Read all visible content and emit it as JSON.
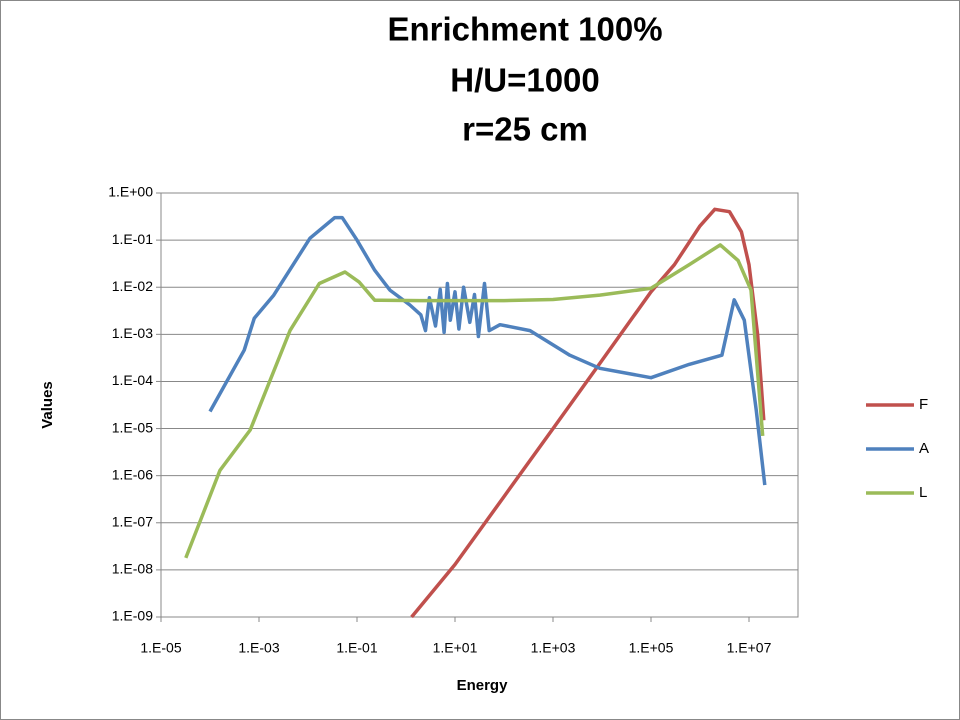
{
  "chart_data": {
    "type": "line",
    "title": [
      "Enrichment 100%",
      "H/U=1000",
      "r=25 cm"
    ],
    "x_label": "Energy",
    "y_label": "Values",
    "xscale": "log",
    "yscale": "log",
    "xlim": [
      1e-05,
      100000000.0
    ],
    "ylim": [
      1e-09,
      1
    ],
    "xticks": [
      {
        "value": 1e-05,
        "label": "1.E-05"
      },
      {
        "value": 0.001,
        "label": "1.E-03"
      },
      {
        "value": 0.1,
        "label": "1.E-01"
      },
      {
        "value": 10,
        "label": "1.E+01"
      },
      {
        "value": 1000,
        "label": "1.E+03"
      },
      {
        "value": 100000,
        "label": "1.E+05"
      },
      {
        "value": 10000000,
        "label": "1.E+07"
      }
    ],
    "yticks": [
      {
        "value": 1,
        "label": "1.E+00"
      },
      {
        "value": 0.1,
        "label": "1.E-01"
      },
      {
        "value": 0.01,
        "label": "1.E-02"
      },
      {
        "value": 0.001,
        "label": "1.E-03"
      },
      {
        "value": 0.0001,
        "label": "1.E-04"
      },
      {
        "value": 1e-05,
        "label": "1.E-05"
      },
      {
        "value": 1e-06,
        "label": "1.E-06"
      },
      {
        "value": 1e-07,
        "label": "1.E-07"
      },
      {
        "value": 1e-08,
        "label": "1.E-08"
      },
      {
        "value": 1e-09,
        "label": "1.E-09"
      }
    ],
    "grid": true,
    "legend": "right",
    "series": [
      {
        "name": "F",
        "color": "#c0504d",
        "x": [
          1.3,
          10,
          100,
          1000,
          10000,
          100000,
          300000,
          1000000,
          2000000,
          4000000,
          7000000,
          10000000,
          15000000,
          20000000
        ],
        "values": [
          1e-09,
          1.3e-08,
          3.6e-07,
          1e-05,
          0.00028,
          0.008,
          0.03,
          0.2,
          0.45,
          0.4,
          0.15,
          0.03,
          0.001,
          1.5e-05
        ]
      },
      {
        "name": "A",
        "color": "#4f81bd",
        "x": [
          0.0001,
          0.0005,
          0.0008,
          0.002,
          0.011,
          0.035,
          0.05,
          0.1,
          0.23,
          0.47,
          1.2,
          2,
          2.5,
          3,
          4,
          5,
          6,
          7,
          8,
          10,
          12,
          15,
          20,
          25,
          30,
          40,
          50,
          83,
          340,
          2200,
          9000,
          100000,
          600000,
          2800000,
          5000000,
          8000000,
          14000000,
          21000000
        ],
        "values": [
          2.3e-05,
          0.00046,
          0.0022,
          0.0068,
          0.11,
          0.3,
          0.3,
          0.1,
          0.023,
          0.0087,
          0.0042,
          0.0026,
          0.0012,
          0.006,
          0.0015,
          0.009,
          0.0011,
          0.012,
          0.002,
          0.008,
          0.0013,
          0.01,
          0.0018,
          0.007,
          0.0009,
          0.012,
          0.0012,
          0.0016,
          0.0012,
          0.00036,
          0.00019,
          0.00012,
          0.00023,
          0.00036,
          0.0054,
          0.002,
          2.5e-05,
          6.3e-07
        ]
      },
      {
        "name": "L",
        "color": "#9bbb59",
        "x": [
          3.2e-05,
          0.00016,
          0.00066,
          0.0043,
          0.017,
          0.057,
          0.11,
          0.23,
          2,
          100,
          1000,
          9000,
          100000,
          600000,
          2600000,
          6000000,
          11000000,
          19000000
        ],
        "values": [
          1.8e-08,
          1.3e-06,
          9.3e-06,
          0.0012,
          0.012,
          0.021,
          0.013,
          0.0053,
          0.0052,
          0.0052,
          0.0055,
          0.0068,
          0.0095,
          0.03,
          0.079,
          0.037,
          0.0087,
          7e-06
        ]
      }
    ]
  }
}
